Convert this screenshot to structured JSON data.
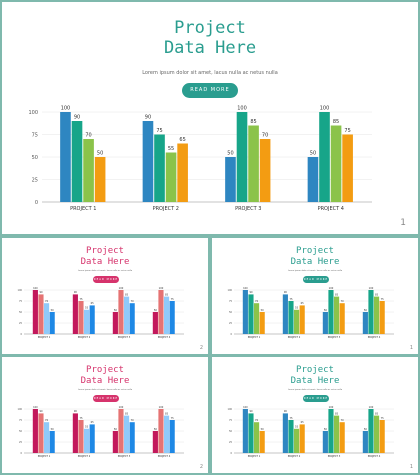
{
  "slides": [
    {
      "title_line1": "Project",
      "title_line2": "Data Here",
      "subtitle": "Lorem ipsum dolor sit amet, lacus nulla ac netus nulla",
      "button_label": "READ MORE",
      "page_number": "1",
      "theme": "teal"
    },
    {
      "title_line1": "Project",
      "title_line2": "Data Here",
      "subtitle": "Lorem ipsum dolor sit amet, lacus nulla ac netus nulla",
      "button_label": "READ MORE",
      "page_number": "2",
      "theme": "pink"
    },
    {
      "title_line1": "Project",
      "title_line2": "Data Here",
      "subtitle": "Lorem ipsum dolor sit amet, lacus nulla ac netus nulla",
      "button_label": "READ MORE",
      "page_number": "1",
      "theme": "teal"
    },
    {
      "title_line1": "Project",
      "title_line2": "Data Here",
      "subtitle": "Lorem ipsum dolor sit amet, lacus nulla ac netus nulla",
      "button_label": "READ MORE",
      "page_number": "2",
      "theme": "pink"
    },
    {
      "title_line1": "Project",
      "title_line2": "Data Here",
      "subtitle": "Lorem ipsum dolor sit amet, lacus nulla ac netus nulla",
      "button_label": "READ MORE",
      "page_number": "1",
      "theme": "teal"
    }
  ],
  "themes": {
    "teal": {
      "title_color": "#2a9d8f",
      "button_color": "#2a9d8f",
      "bar_colors": [
        "#2e86c1",
        "#17a589",
        "#8bc34a",
        "#f39c12"
      ]
    },
    "pink": {
      "title_color": "#d6336c",
      "button_color": "#d6336c",
      "bar_colors": [
        "#c2185b",
        "#e57373",
        "#90caf9",
        "#1e88e5"
      ]
    }
  },
  "chart_data": {
    "type": "bar",
    "categories": [
      "PROJECT 1",
      "PROJECT 2",
      "PROJECT 3",
      "PROJECT 4"
    ],
    "series": [
      {
        "values": [
          100,
          90,
          50,
          50
        ]
      },
      {
        "values": [
          90,
          75,
          100,
          100
        ]
      },
      {
        "values": [
          70,
          55,
          85,
          85
        ]
      },
      {
        "values": [
          50,
          65,
          70,
          75
        ]
      }
    ],
    "ylim": [
      0,
      100
    ],
    "yticks": [
      0,
      25,
      50,
      75,
      100
    ]
  }
}
